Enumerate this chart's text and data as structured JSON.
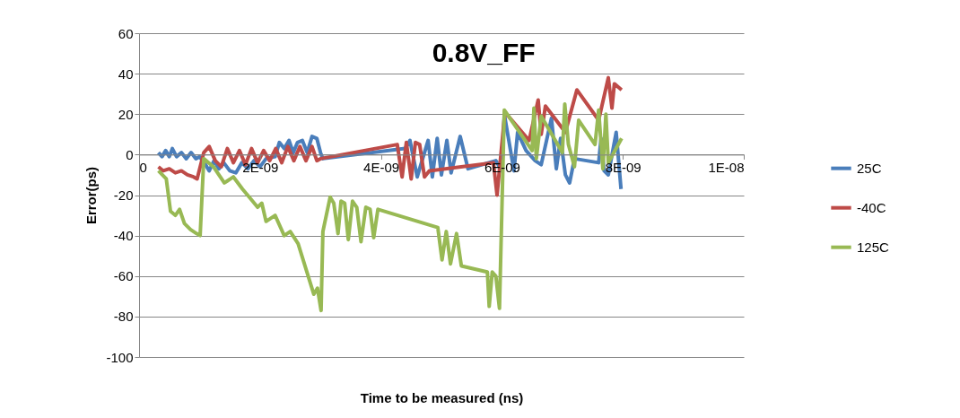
{
  "chart_data": {
    "type": "line",
    "title": "0.8V_FF",
    "xlabel": "Time to be measured (ns)",
    "ylabel": "Error(ps)",
    "xlim": [
      0,
      1e-08
    ],
    "xticks": [
      0,
      {
        "value": 2e-09,
        "label": "2E-09"
      },
      {
        "value": 4e-09,
        "label": "4E-09"
      },
      {
        "value": 6e-09,
        "label": "6E-09"
      },
      {
        "value": 8e-09,
        "label": "8E-09"
      },
      {
        "value": 1e-08,
        "label": "1E-08"
      }
    ],
    "ylim": [
      -100,
      60
    ],
    "yticks": [
      -100,
      -80,
      -60,
      -40,
      -20,
      0,
      20,
      40,
      60
    ],
    "grid": "y",
    "legend": "right",
    "marker": "none",
    "line_style": "solid",
    "series": [
      {
        "name": "25C",
        "color": "#4a7ebb",
        "x": [
          3.2e-10,
          3.8e-10,
          4.4e-10,
          5e-10,
          5.5e-10,
          6.2e-10,
          7e-10,
          7.8e-10,
          8.6e-10,
          9.4e-10,
          1e-09,
          1.08e-09,
          1.16e-09,
          1.24e-09,
          1.32e-09,
          1.4e-09,
          1.5e-09,
          1.6e-09,
          1.7e-09,
          1.8e-09,
          1.9e-09,
          2e-09,
          2.1e-09,
          2.25e-09,
          2.32e-09,
          2.4e-09,
          2.48e-09,
          2.55e-09,
          2.62e-09,
          2.7e-09,
          2.78e-09,
          2.86e-09,
          2.94e-09,
          3e-09,
          3.04e-09,
          4.4e-09,
          4.48e-09,
          4.6e-09,
          4.78e-09,
          4.85e-09,
          4.93e-09,
          5e-09,
          5.09e-09,
          5.16e-09,
          5.31e-09,
          5.44e-09,
          5.9e-09,
          6e-09,
          6.04e-09,
          6.2e-09,
          6.26e-09,
          6.4e-09,
          6.55e-09,
          6.65e-09,
          6.82e-09,
          6.9e-09,
          6.97e-09,
          7.05e-09,
          7.12e-09,
          7.2e-09,
          7.6e-09,
          7.64e-09,
          7.69e-09,
          7.76e-09,
          7.89e-09,
          7.97e-09
        ],
        "values": [
          1,
          -1,
          2,
          -1,
          3,
          -1,
          1,
          -2,
          1,
          -2,
          -1,
          -4,
          -8,
          -3,
          -7,
          -4,
          -8,
          -9,
          -4,
          -7,
          -3,
          -6,
          -2,
          -1,
          6,
          3,
          7,
          1,
          6,
          7,
          1,
          9,
          8,
          1,
          -2,
          3,
          7,
          -11,
          7,
          -11,
          8,
          -10,
          7,
          -9,
          9,
          -7,
          -3,
          -8,
          20,
          -8,
          11,
          2,
          -3,
          -5,
          18,
          -7,
          8,
          -10,
          -14,
          -2,
          -4,
          8,
          -8,
          -10,
          11,
          -17
        ]
      },
      {
        "name": "-40C",
        "color": "#be4b48",
        "x": [
          3.2e-10,
          4e-10,
          5e-10,
          6e-10,
          7e-10,
          8e-10,
          9e-10,
          9.6e-10,
          1.07e-09,
          1.16e-09,
          1.26e-09,
          1.36e-09,
          1.46e-09,
          1.56e-09,
          1.66e-09,
          1.76e-09,
          1.86e-09,
          1.96e-09,
          2.06e-09,
          2.16e-09,
          2.26e-09,
          2.36e-09,
          2.46e-09,
          2.56e-09,
          2.66e-09,
          2.76e-09,
          2.86e-09,
          2.94e-09,
          3e-09,
          4.27e-09,
          4.35e-09,
          4.42e-09,
          4.5e-09,
          4.57e-09,
          4.64e-09,
          4.72e-09,
          4.8e-09,
          5.86e-09,
          5.92e-09,
          6.05e-09,
          6.45e-09,
          6.6e-09,
          6.65e-09,
          6.72e-09,
          7.05e-09,
          7.24e-09,
          7.6e-09,
          7.76e-09,
          7.82e-09,
          7.86e-09,
          7.98e-09
        ],
        "values": [
          -6,
          -8,
          -7,
          -9,
          -8,
          -10,
          -11,
          -12,
          1,
          4,
          -3,
          -6,
          3,
          -4,
          2,
          -5,
          3,
          -4,
          2,
          -3,
          3,
          -4,
          4,
          -3,
          4,
          -3,
          4,
          -3,
          -2,
          5,
          -11,
          6,
          -12,
          6,
          5,
          -11,
          -8,
          -4,
          -20,
          21,
          7,
          27,
          10,
          24,
          11,
          32,
          17,
          38,
          23,
          35,
          32
        ]
      },
      {
        "name": "125C",
        "color": "#98b954",
        "x": [
          3.2e-10,
          4.5e-10,
          5.2e-10,
          6e-10,
          6.7e-10,
          7.5e-10,
          8.5e-10,
          9.5e-10,
          1.01e-09,
          1.07e-09,
          1.23e-09,
          1.32e-09,
          1.41e-09,
          1.56e-09,
          1.71e-09,
          1.85e-09,
          1.96e-09,
          2.03e-09,
          2.1e-09,
          2.25e-09,
          2.4e-09,
          2.5e-09,
          2.63e-09,
          2.89e-09,
          2.95e-09,
          3.01e-09,
          3.04e-09,
          3.16e-09,
          3.22e-09,
          3.29e-09,
          3.34e-09,
          3.4e-09,
          3.46e-09,
          3.53e-09,
          3.6e-09,
          3.67e-09,
          3.75e-09,
          3.82e-09,
          3.88e-09,
          3.95e-09,
          4.94e-09,
          5.01e-09,
          5.08e-09,
          5.15e-09,
          5.25e-09,
          5.33e-09,
          5.76e-09,
          5.79e-09,
          5.84e-09,
          5.9e-09,
          5.96e-09,
          6.04e-09,
          6.5e-09,
          6.53e-09,
          6.57e-09,
          6.65e-09,
          7e-09,
          7.04e-09,
          7.1e-09,
          7.2e-09,
          7.27e-09,
          7.54e-09,
          7.6e-09,
          7.67e-09,
          7.72e-09,
          7.76e-09,
          7.98e-09
        ],
        "values": [
          -8,
          -12,
          -28,
          -30,
          -27,
          -34,
          -37,
          -39,
          -40,
          -2,
          -6,
          -10,
          -14,
          -11,
          -17,
          -22,
          -26,
          -24,
          -33,
          -30,
          -40,
          -38,
          -44,
          -69,
          -66,
          -77,
          -38,
          -21,
          -24,
          -39,
          -23,
          -24,
          -42,
          -23,
          -26,
          -43,
          -26,
          -27,
          -41,
          -27,
          -36,
          -52,
          -38,
          -54,
          -39,
          -55,
          -58,
          -75,
          -58,
          -60,
          -76,
          22,
          2,
          23,
          -2,
          19,
          1,
          25,
          5,
          -6,
          17,
          5,
          22,
          -7,
          20,
          -4,
          8
        ]
      }
    ]
  }
}
